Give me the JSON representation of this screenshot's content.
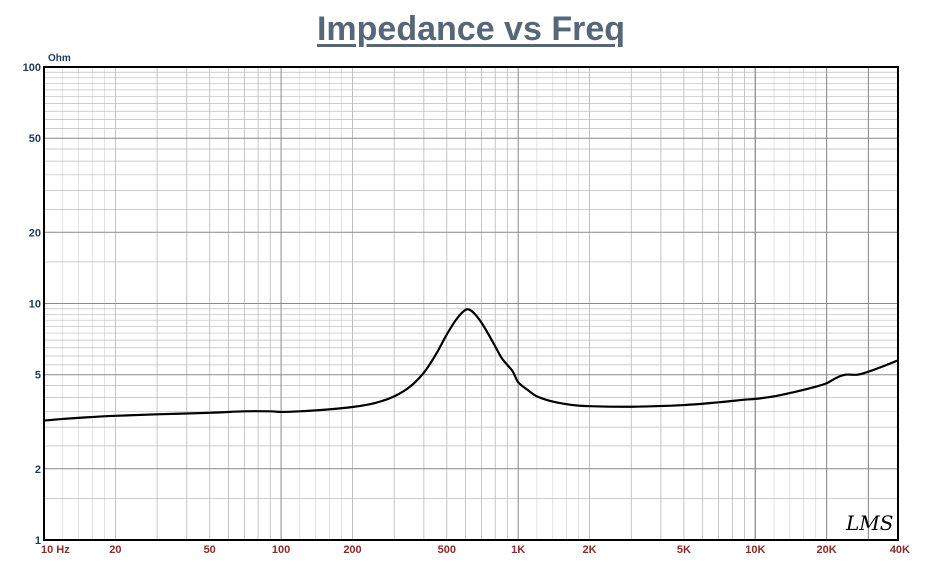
{
  "chart_data": {
    "type": "line",
    "title": "Impedance vs Freq",
    "y_unit": "Ohm",
    "x_scale": "log",
    "y_scale": "log",
    "xlim": [
      10,
      40000
    ],
    "ylim": [
      1,
      100
    ],
    "grid": true,
    "x_ticks": [
      {
        "value": 10,
        "label": "10  Hz"
      },
      {
        "value": 20,
        "label": "20"
      },
      {
        "value": 50,
        "label": "50"
      },
      {
        "value": 100,
        "label": "100"
      },
      {
        "value": 200,
        "label": "200"
      },
      {
        "value": 500,
        "label": "500"
      },
      {
        "value": 1000,
        "label": "1K"
      },
      {
        "value": 2000,
        "label": "2K"
      },
      {
        "value": 5000,
        "label": "5K"
      },
      {
        "value": 10000,
        "label": "10K"
      },
      {
        "value": 20000,
        "label": "20K"
      },
      {
        "value": 40000,
        "label": "40K"
      }
    ],
    "y_ticks": [
      {
        "value": 100,
        "label": "100"
      },
      {
        "value": 50,
        "label": "50"
      },
      {
        "value": 20,
        "label": "20"
      },
      {
        "value": 10,
        "label": "10"
      },
      {
        "value": 5,
        "label": "5"
      },
      {
        "value": 2,
        "label": "2"
      },
      {
        "value": 1,
        "label": "1"
      }
    ],
    "series": [
      {
        "color": "#000000",
        "points": [
          [
            10,
            3.2
          ],
          [
            12,
            3.25
          ],
          [
            15,
            3.3
          ],
          [
            20,
            3.35
          ],
          [
            30,
            3.4
          ],
          [
            50,
            3.45
          ],
          [
            70,
            3.5
          ],
          [
            90,
            3.5
          ],
          [
            100,
            3.48
          ],
          [
            120,
            3.5
          ],
          [
            150,
            3.55
          ],
          [
            200,
            3.65
          ],
          [
            250,
            3.8
          ],
          [
            300,
            4.05
          ],
          [
            350,
            4.45
          ],
          [
            400,
            5.1
          ],
          [
            450,
            6.1
          ],
          [
            500,
            7.4
          ],
          [
            550,
            8.6
          ],
          [
            600,
            9.4
          ],
          [
            640,
            9.25
          ],
          [
            700,
            8.3
          ],
          [
            780,
            6.9
          ],
          [
            850,
            5.9
          ],
          [
            900,
            5.5
          ],
          [
            950,
            5.15
          ],
          [
            1000,
            4.65
          ],
          [
            1100,
            4.3
          ],
          [
            1200,
            4.05
          ],
          [
            1400,
            3.85
          ],
          [
            1700,
            3.72
          ],
          [
            2000,
            3.68
          ],
          [
            3000,
            3.66
          ],
          [
            5000,
            3.72
          ],
          [
            7000,
            3.82
          ],
          [
            9000,
            3.92
          ],
          [
            10000,
            3.95
          ],
          [
            12000,
            4.05
          ],
          [
            15000,
            4.25
          ],
          [
            18000,
            4.45
          ],
          [
            20000,
            4.6
          ],
          [
            22000,
            4.85
          ],
          [
            24000,
            5.0
          ],
          [
            27000,
            5.0
          ],
          [
            30000,
            5.15
          ],
          [
            35000,
            5.45
          ],
          [
            40000,
            5.75
          ]
        ]
      }
    ]
  },
  "logo_text": "LMS"
}
